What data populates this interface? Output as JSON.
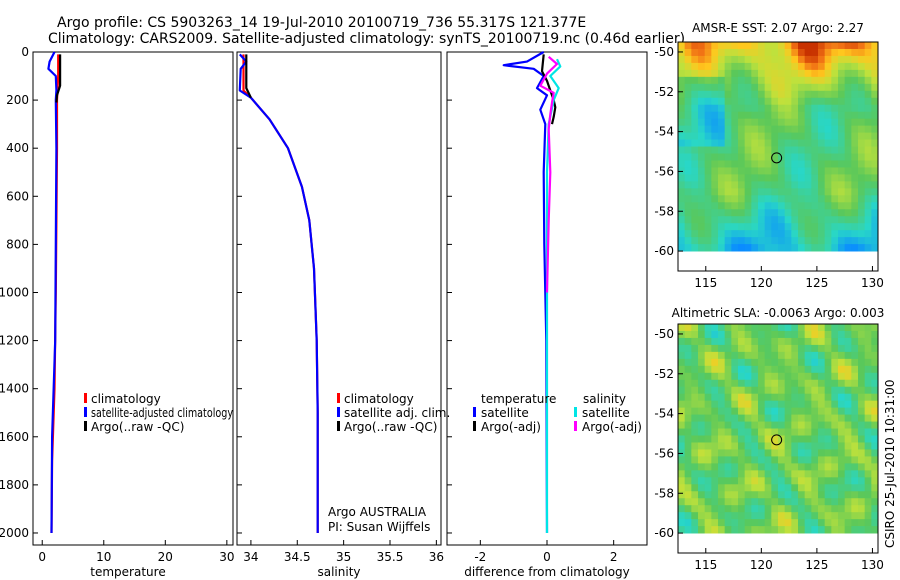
{
  "titles": {
    "line1": "Argo profile: CS 5903263_14 19-Jul-2010 20100719_736 55.317S 121.377E",
    "line2": "Climatology: CARS2009. Satellite-adjusted climatology: synTS_20100719.nc (0.46d earlier)"
  },
  "stamp": "CSIRO 25-Jul-2010 10:31:00",
  "colors": {
    "climatology": "#ff0000",
    "satellite": "#0000ff",
    "argo": "#000000",
    "sal_satellite": "#00e5e5",
    "sal_argo": "#ff00ff"
  },
  "chart_data": [
    {
      "id": "temperature",
      "type": "line",
      "xlabel": "temperature",
      "ylabel": "",
      "xlim": [
        -1.5,
        31
      ],
      "ylim": [
        2050,
        0
      ],
      "xticks": [
        "0",
        "10",
        "20",
        "30"
      ],
      "xtick_values": [
        0,
        10,
        20,
        30
      ],
      "yticks": [
        "0",
        "200",
        "400",
        "600",
        "800",
        "1000",
        "1200",
        "1400",
        "1600",
        "1800",
        "2000"
      ],
      "ytick_values": [
        0,
        200,
        400,
        600,
        800,
        1000,
        1200,
        1400,
        1600,
        1800,
        2000
      ],
      "series": [
        {
          "name": "climatology",
          "color": "#ff0000",
          "points": [
            [
              2.6,
              10
            ],
            [
              2.6,
              100
            ],
            [
              2.4,
              200
            ],
            [
              2.4,
              400
            ],
            [
              2.3,
              700
            ],
            [
              2.2,
              1000
            ],
            [
              2.0,
              1400
            ],
            [
              1.6,
              1700
            ],
            [
              1.5,
              2000
            ]
          ]
        },
        {
          "name": "satellite-adjusted climatology",
          "color": "#0000ff",
          "points": [
            [
              2.0,
              0
            ],
            [
              1.2,
              40
            ],
            [
              1.0,
              70
            ],
            [
              2.2,
              100
            ],
            [
              2.3,
              160
            ],
            [
              2.2,
              200
            ],
            [
              2.3,
              400
            ],
            [
              2.2,
              800
            ],
            [
              2.1,
              1200
            ],
            [
              1.6,
              1600
            ],
            [
              1.5,
              2000
            ]
          ]
        },
        {
          "name": "Argo(..raw -QC)",
          "color": "#000000",
          "points": [
            [
              2.9,
              10
            ],
            [
              2.9,
              140
            ],
            [
              2.4,
              180
            ],
            [
              2.3,
              210
            ]
          ]
        }
      ],
      "legend": [
        "climatology",
        "satellite-adjusted climatology",
        "Argo(..raw -QC)"
      ],
      "legend_position": "lower-right"
    },
    {
      "id": "salinity",
      "type": "line",
      "xlabel": "salinity",
      "xlim": [
        33.85,
        36.05
      ],
      "ylim": [
        2050,
        0
      ],
      "xticks": [
        "34",
        "34.5",
        "35",
        "35.5",
        "36"
      ],
      "xtick_values": [
        34,
        34.5,
        35,
        35.5,
        36
      ],
      "series": [
        {
          "name": "climatology",
          "color": "#ff0000",
          "points": [
            [
              33.92,
              10
            ],
            [
              33.92,
              160
            ],
            [
              34.0,
              190
            ],
            [
              34.2,
              280
            ],
            [
              34.4,
              400
            ],
            [
              34.55,
              560
            ],
            [
              34.63,
              700
            ],
            [
              34.68,
              900
            ],
            [
              34.71,
              1200
            ],
            [
              34.72,
              1500
            ],
            [
              34.72,
              2000
            ]
          ]
        },
        {
          "name": "satellite adj. clim.",
          "color": "#0000ff",
          "points": [
            [
              33.88,
              10
            ],
            [
              33.95,
              40
            ],
            [
              33.89,
              70
            ],
            [
              33.88,
              160
            ],
            [
              34.0,
              190
            ],
            [
              34.2,
              280
            ],
            [
              34.4,
              400
            ],
            [
              34.55,
              560
            ],
            [
              34.63,
              700
            ],
            [
              34.68,
              900
            ],
            [
              34.71,
              1200
            ],
            [
              34.72,
              1500
            ],
            [
              34.72,
              2000
            ]
          ]
        },
        {
          "name": "Argo(..raw -QC)",
          "color": "#000000",
          "points": [
            [
              33.95,
              10
            ],
            [
              33.95,
              150
            ],
            [
              34.0,
              190
            ]
          ]
        }
      ],
      "legend": [
        "climatology",
        "satellite adj. clim.",
        "Argo(..raw -QC)"
      ],
      "legend_position": "lower-right",
      "annotations": [
        "Argo AUSTRALIA",
        "PI: Susan Wijffels"
      ]
    },
    {
      "id": "difference",
      "type": "line",
      "xlabel": "difference from climatology",
      "xlim": [
        -3.0,
        3.0
      ],
      "ylim": [
        2050,
        0
      ],
      "xticks": [
        "-2",
        "0",
        "2"
      ],
      "xtick_values": [
        -2,
        0,
        2
      ],
      "series": [
        {
          "name": "temperature satellite",
          "color": "#0000ff",
          "points": [
            [
              -0.1,
              0
            ],
            [
              -0.6,
              40
            ],
            [
              -1.3,
              55
            ],
            [
              -0.4,
              70
            ],
            [
              -0.1,
              100
            ],
            [
              -0.3,
              150
            ],
            [
              0.0,
              180
            ],
            [
              -0.2,
              240
            ],
            [
              -0.05,
              300
            ],
            [
              -0.1,
              500
            ],
            [
              -0.08,
              800
            ],
            [
              -0.02,
              1200
            ],
            [
              0.0,
              2000
            ]
          ]
        },
        {
          "name": "temperature Argo(-adj)",
          "color": "#000000",
          "points": [
            [
              -0.1,
              10
            ],
            [
              -0.15,
              80
            ],
            [
              0.0,
              120
            ],
            [
              0.15,
              180
            ],
            [
              0.2,
              200
            ],
            [
              0.25,
              230
            ],
            [
              0.2,
              270
            ],
            [
              0.15,
              300
            ]
          ]
        },
        {
          "name": "salinity satellite",
          "color": "#00e5e5",
          "points": [
            [
              0.3,
              30
            ],
            [
              0.4,
              60
            ],
            [
              0.1,
              100
            ],
            [
              0.35,
              150
            ],
            [
              0.2,
              200
            ],
            [
              0.05,
              300
            ],
            [
              0.0,
              500
            ],
            [
              0.0,
              2000
            ]
          ]
        },
        {
          "name": "salinity Argo(-adj)",
          "color": "#ff00ff",
          "points": [
            [
              0.05,
              20
            ],
            [
              0.3,
              50
            ],
            [
              0.0,
              90
            ],
            [
              -0.2,
              140
            ],
            [
              0.2,
              170
            ],
            [
              0.15,
              210
            ],
            [
              0.1,
              260
            ],
            [
              0.05,
              320
            ],
            [
              0.1,
              500
            ],
            [
              0.05,
              700
            ],
            [
              0.0,
              1000
            ]
          ]
        }
      ],
      "legend_headers": [
        "temperature",
        "salinity"
      ],
      "legend": [
        "satellite",
        "Argo(-adj)",
        "satellite",
        "Argo(-adj)"
      ],
      "legend_position": "lower-center"
    },
    {
      "id": "sst-map",
      "type": "heatmap",
      "title": "AMSR-E SST: 2.07 Argo: 2.27",
      "xlim": [
        112.5,
        130.5
      ],
      "ylim": [
        -61,
        -49.5
      ],
      "xticks": [
        "115",
        "120",
        "125",
        "130"
      ],
      "xtick_values": [
        115,
        120,
        125,
        130
      ],
      "yticks": [
        "-50",
        "-52",
        "-54",
        "-56",
        "-58",
        "-60"
      ],
      "ytick_values": [
        -50,
        -52,
        -54,
        -56,
        -58,
        -60
      ],
      "float_position": [
        121.377,
        -55.317
      ]
    },
    {
      "id": "sla-map",
      "type": "heatmap",
      "title": "Altimetric SLA: -0.0063 Argo: 0.003",
      "xlim": [
        112.5,
        130.5
      ],
      "ylim": [
        -61,
        -49.5
      ],
      "xticks": [
        "115",
        "120",
        "125",
        "130"
      ],
      "xtick_values": [
        115,
        120,
        125,
        130
      ],
      "yticks": [
        "-50",
        "-52",
        "-54",
        "-56",
        "-58",
        "-60"
      ],
      "ytick_values": [
        -50,
        -52,
        -54,
        -56,
        -58,
        -60
      ],
      "float_position": [
        121.377,
        -55.317
      ]
    }
  ]
}
